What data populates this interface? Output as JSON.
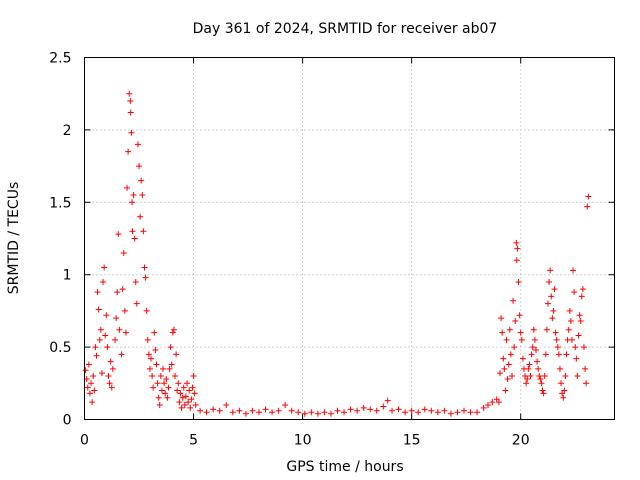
{
  "chart_data": {
    "type": "scatter",
    "title": "Day 361 of 2024, SRMTID for receiver ab07",
    "xlabel": "GPS time / hours",
    "ylabel": "SRMTID / TECUs",
    "xlim": [
      0,
      24.3
    ],
    "ylim": [
      0,
      2.5
    ],
    "xticks": [
      0,
      5,
      10,
      15,
      20
    ],
    "xtick_labels": [
      "0",
      "5",
      "10",
      "15",
      "20"
    ],
    "yticks": [
      0,
      0.5,
      1,
      1.5,
      2,
      2.5
    ],
    "ytick_labels": [
      "0",
      "0.5",
      "1",
      "1.5",
      "2",
      "2.5"
    ],
    "grid": true,
    "marker": "+",
    "series": [
      {
        "name": "SRMTID",
        "color": "#ff0000",
        "points": [
          [
            0.05,
            0.34
          ],
          [
            0.1,
            0.28
          ],
          [
            0.15,
            0.22
          ],
          [
            0.2,
            0.38
          ],
          [
            0.25,
            0.18
          ],
          [
            0.3,
            0.25
          ],
          [
            0.35,
            0.12
          ],
          [
            0.4,
            0.3
          ],
          [
            0.45,
            0.2
          ],
          [
            0.5,
            0.5
          ],
          [
            0.55,
            0.44
          ],
          [
            0.6,
            0.88
          ],
          [
            0.65,
            0.76
          ],
          [
            0.7,
            0.55
          ],
          [
            0.75,
            0.62
          ],
          [
            0.8,
            0.32
          ],
          [
            0.85,
            0.95
          ],
          [
            0.9,
            1.05
          ],
          [
            0.95,
            0.58
          ],
          [
            1.0,
            0.72
          ],
          [
            1.05,
            0.5
          ],
          [
            1.1,
            0.3
          ],
          [
            1.15,
            0.25
          ],
          [
            1.2,
            0.4
          ],
          [
            1.25,
            0.22
          ],
          [
            1.3,
            0.35
          ],
          [
            1.4,
            0.55
          ],
          [
            1.45,
            0.7
          ],
          [
            1.5,
            0.88
          ],
          [
            1.55,
            1.28
          ],
          [
            1.6,
            0.62
          ],
          [
            1.7,
            0.45
          ],
          [
            1.75,
            0.9
          ],
          [
            1.8,
            1.15
          ],
          [
            1.85,
            0.75
          ],
          [
            1.9,
            0.6
          ],
          [
            1.95,
            1.6
          ],
          [
            2.0,
            1.85
          ],
          [
            2.05,
            2.25
          ],
          [
            2.1,
            2.2
          ],
          [
            2.12,
            2.12
          ],
          [
            2.15,
            1.98
          ],
          [
            2.18,
            1.5
          ],
          [
            2.2,
            1.3
          ],
          [
            2.25,
            1.55
          ],
          [
            2.3,
            1.25
          ],
          [
            2.35,
            0.95
          ],
          [
            2.4,
            0.8
          ],
          [
            2.45,
            1.9
          ],
          [
            2.5,
            1.75
          ],
          [
            2.55,
            1.4
          ],
          [
            2.6,
            1.65
          ],
          [
            2.65,
            1.55
          ],
          [
            2.7,
            1.3
          ],
          [
            2.75,
            1.05
          ],
          [
            2.8,
            0.98
          ],
          [
            2.85,
            0.75
          ],
          [
            2.9,
            0.55
          ],
          [
            2.95,
            0.45
          ],
          [
            3.0,
            0.35
          ],
          [
            3.05,
            0.42
          ],
          [
            3.1,
            0.3
          ],
          [
            3.15,
            0.22
          ],
          [
            3.2,
            0.6
          ],
          [
            3.25,
            0.48
          ],
          [
            3.3,
            0.38
          ],
          [
            3.35,
            0.25
          ],
          [
            3.4,
            0.15
          ],
          [
            3.45,
            0.1
          ],
          [
            3.5,
            0.3
          ],
          [
            3.55,
            0.2
          ],
          [
            3.6,
            0.35
          ],
          [
            3.65,
            0.25
          ],
          [
            3.7,
            0.18
          ],
          [
            3.75,
            0.28
          ],
          [
            3.8,
            0.15
          ],
          [
            3.85,
            0.22
          ],
          [
            3.9,
            0.35
          ],
          [
            3.95,
            0.5
          ],
          [
            4.0,
            0.38
          ],
          [
            4.05,
            0.6
          ],
          [
            4.1,
            0.62
          ],
          [
            4.15,
            0.3
          ],
          [
            4.2,
            0.45
          ],
          [
            4.25,
            0.2
          ],
          [
            4.3,
            0.25
          ],
          [
            4.35,
            0.12
          ],
          [
            4.4,
            0.18
          ],
          [
            4.45,
            0.08
          ],
          [
            4.5,
            0.15
          ],
          [
            4.55,
            0.22
          ],
          [
            4.6,
            0.1
          ],
          [
            4.65,
            0.16
          ],
          [
            4.7,
            0.25
          ],
          [
            4.75,
            0.12
          ],
          [
            4.8,
            0.2
          ],
          [
            4.85,
            0.08
          ],
          [
            4.9,
            0.14
          ],
          [
            4.95,
            0.22
          ],
          [
            5.0,
            0.3
          ],
          [
            5.05,
            0.18
          ],
          [
            5.1,
            0.1
          ],
          [
            5.3,
            0.06
          ],
          [
            5.6,
            0.05
          ],
          [
            5.9,
            0.07
          ],
          [
            6.2,
            0.06
          ],
          [
            6.5,
            0.1
          ],
          [
            6.8,
            0.05
          ],
          [
            7.1,
            0.06
          ],
          [
            7.4,
            0.04
          ],
          [
            7.7,
            0.06
          ],
          [
            8.0,
            0.05
          ],
          [
            8.3,
            0.07
          ],
          [
            8.6,
            0.05
          ],
          [
            8.9,
            0.06
          ],
          [
            9.2,
            0.1
          ],
          [
            9.5,
            0.06
          ],
          [
            9.8,
            0.05
          ],
          [
            10.1,
            0.04
          ],
          [
            10.4,
            0.05
          ],
          [
            10.7,
            0.04
          ],
          [
            11.0,
            0.05
          ],
          [
            11.3,
            0.04
          ],
          [
            11.6,
            0.06
          ],
          [
            11.9,
            0.05
          ],
          [
            12.2,
            0.07
          ],
          [
            12.5,
            0.06
          ],
          [
            12.8,
            0.08
          ],
          [
            13.1,
            0.07
          ],
          [
            13.4,
            0.06
          ],
          [
            13.7,
            0.09
          ],
          [
            13.9,
            0.13
          ],
          [
            14.1,
            0.06
          ],
          [
            14.4,
            0.07
          ],
          [
            14.7,
            0.05
          ],
          [
            15.0,
            0.06
          ],
          [
            15.3,
            0.05
          ],
          [
            15.6,
            0.07
          ],
          [
            15.9,
            0.06
          ],
          [
            16.2,
            0.05
          ],
          [
            16.5,
            0.06
          ],
          [
            16.8,
            0.04
          ],
          [
            17.1,
            0.05
          ],
          [
            17.4,
            0.06
          ],
          [
            17.7,
            0.05
          ],
          [
            18.0,
            0.05
          ],
          [
            18.3,
            0.08
          ],
          [
            18.5,
            0.1
          ],
          [
            18.7,
            0.12
          ],
          [
            18.9,
            0.14
          ],
          [
            19.0,
            0.12
          ],
          [
            19.05,
            0.32
          ],
          [
            19.1,
            0.7
          ],
          [
            19.15,
            0.6
          ],
          [
            19.2,
            0.42
          ],
          [
            19.25,
            0.35
          ],
          [
            19.3,
            0.2
          ],
          [
            19.35,
            0.55
          ],
          [
            19.4,
            0.28
          ],
          [
            19.45,
            0.38
          ],
          [
            19.5,
            0.62
          ],
          [
            19.55,
            0.45
          ],
          [
            19.6,
            0.3
          ],
          [
            19.65,
            0.82
          ],
          [
            19.7,
            0.5
          ],
          [
            19.75,
            0.68
          ],
          [
            19.8,
            1.22
          ],
          [
            19.82,
            1.1
          ],
          [
            19.85,
            1.18
          ],
          [
            19.9,
            0.95
          ],
          [
            19.95,
            0.72
          ],
          [
            20.0,
            0.6
          ],
          [
            20.05,
            0.55
          ],
          [
            20.1,
            0.42
          ],
          [
            20.15,
            0.35
          ],
          [
            20.2,
            0.3
          ],
          [
            20.25,
            0.25
          ],
          [
            20.3,
            0.28
          ],
          [
            20.35,
            0.35
          ],
          [
            20.4,
            0.38
          ],
          [
            20.45,
            0.3
          ],
          [
            20.5,
            0.45
          ],
          [
            20.55,
            0.5
          ],
          [
            20.6,
            0.62
          ],
          [
            20.65,
            0.55
          ],
          [
            20.7,
            0.48
          ],
          [
            20.75,
            0.4
          ],
          [
            20.8,
            0.35
          ],
          [
            20.85,
            0.3
          ],
          [
            20.9,
            0.28
          ],
          [
            20.95,
            0.25
          ],
          [
            21.0,
            0.2
          ],
          [
            21.05,
            0.18
          ],
          [
            21.1,
            0.3
          ],
          [
            21.15,
            0.45
          ],
          [
            21.2,
            0.62
          ],
          [
            21.25,
            0.8
          ],
          [
            21.3,
            0.95
          ],
          [
            21.35,
            1.03
          ],
          [
            21.4,
            0.85
          ],
          [
            21.45,
            0.7
          ],
          [
            21.5,
            0.75
          ],
          [
            21.55,
            0.9
          ],
          [
            21.6,
            0.6
          ],
          [
            21.65,
            0.55
          ],
          [
            21.7,
            0.5
          ],
          [
            21.75,
            0.45
          ],
          [
            21.8,
            0.35
          ],
          [
            21.85,
            0.25
          ],
          [
            21.9,
            0.18
          ],
          [
            21.95,
            0.15
          ],
          [
            22.0,
            0.2
          ],
          [
            22.05,
            0.3
          ],
          [
            22.1,
            0.45
          ],
          [
            22.15,
            0.55
          ],
          [
            22.2,
            0.62
          ],
          [
            22.25,
            0.75
          ],
          [
            22.3,
            0.68
          ],
          [
            22.35,
            0.55
          ],
          [
            22.4,
            1.03
          ],
          [
            22.45,
            0.88
          ],
          [
            22.5,
            0.5
          ],
          [
            22.55,
            0.42
          ],
          [
            22.6,
            0.3
          ],
          [
            22.65,
            0.58
          ],
          [
            22.7,
            0.72
          ],
          [
            22.75,
            0.68
          ],
          [
            22.8,
            0.85
          ],
          [
            22.85,
            0.9
          ],
          [
            22.9,
            0.5
          ],
          [
            22.95,
            0.35
          ],
          [
            23.0,
            0.25
          ],
          [
            23.05,
            1.47
          ],
          [
            23.1,
            1.54
          ]
        ]
      }
    ]
  }
}
